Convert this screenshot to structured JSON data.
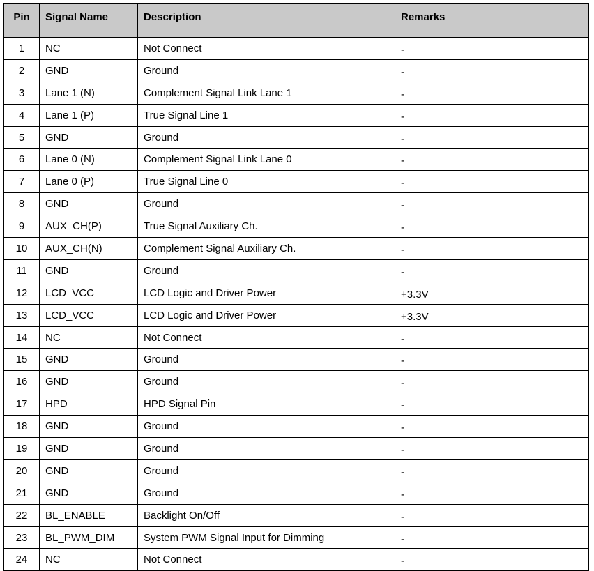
{
  "table": {
    "headers": [
      "Pin",
      "Signal Name",
      "Description",
      "Remarks"
    ],
    "rows": [
      [
        "1",
        "NC",
        "Not Connect",
        "-"
      ],
      [
        "2",
        "GND",
        "Ground",
        "-"
      ],
      [
        "3",
        "Lane 1 (N)",
        "Complement Signal Link Lane 1",
        "-"
      ],
      [
        "4",
        "Lane 1 (P)",
        "True Signal Line 1",
        "-"
      ],
      [
        "5",
        "GND",
        "Ground",
        "-"
      ],
      [
        "6",
        "Lane 0 (N)",
        "Complement Signal Link Lane 0",
        "-"
      ],
      [
        "7",
        "Lane 0 (P)",
        "True Signal Line 0",
        "-"
      ],
      [
        "8",
        "GND",
        "Ground",
        "-"
      ],
      [
        "9",
        "AUX_CH(P)",
        "True Signal Auxiliary Ch.",
        "-"
      ],
      [
        "10",
        "AUX_CH(N)",
        "Complement Signal Auxiliary Ch.",
        "-"
      ],
      [
        "11",
        "GND",
        "Ground",
        "-"
      ],
      [
        "12",
        "LCD_VCC",
        "LCD Logic and Driver Power",
        "+3.3V"
      ],
      [
        "13",
        "LCD_VCC",
        "LCD Logic and Driver Power",
        "+3.3V"
      ],
      [
        "14",
        "NC",
        "Not Connect",
        "-"
      ],
      [
        "15",
        "GND",
        "Ground",
        "-"
      ],
      [
        "16",
        "GND",
        "Ground",
        "-"
      ],
      [
        "17",
        "HPD",
        "HPD Signal Pin",
        "-"
      ],
      [
        "18",
        "GND",
        "Ground",
        "-"
      ],
      [
        "19",
        "GND",
        "Ground",
        "-"
      ],
      [
        "20",
        "GND",
        "Ground",
        "-"
      ],
      [
        "21",
        "GND",
        "Ground",
        "-"
      ],
      [
        "22",
        "BL_ENABLE",
        "Backlight On/Off",
        "-"
      ],
      [
        "23",
        "BL_PWM_DIM",
        "System PWM Signal Input for Dimming",
        "-"
      ],
      [
        "24",
        "NC",
        "Not Connect",
        "-"
      ]
    ]
  }
}
